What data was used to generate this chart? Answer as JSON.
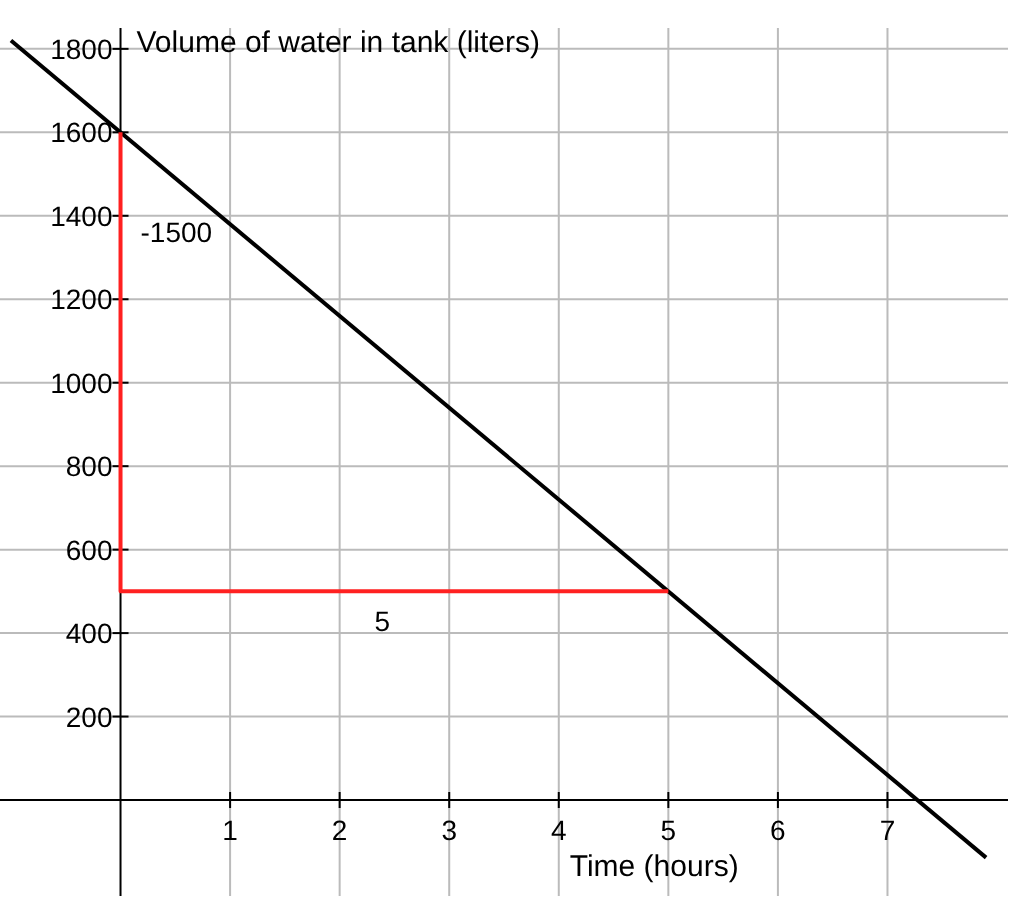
{
  "chart_data": {
    "type": "line",
    "xlabel": "Time (hours)",
    "ylabel": "Volume of water in tank (liters)",
    "xlim": [
      -1.1,
      8.1
    ],
    "ylim": [
      -230,
      1850
    ],
    "xticks": [
      1,
      2,
      3,
      4,
      5,
      6,
      7
    ],
    "yticks": [
      200,
      400,
      600,
      800,
      1000,
      1200,
      1400,
      1600,
      1800
    ],
    "grid": true,
    "series": [
      {
        "color": "#000000",
        "x": [
          -1,
          7.9
        ],
        "values": [
          1820,
          -138
        ]
      },
      {
        "color": "#ff2020",
        "x": [
          0,
          0,
          5
        ],
        "values": [
          1600,
          500,
          500
        ]
      }
    ],
    "annotations": [
      "-1500",
      "5"
    ]
  }
}
